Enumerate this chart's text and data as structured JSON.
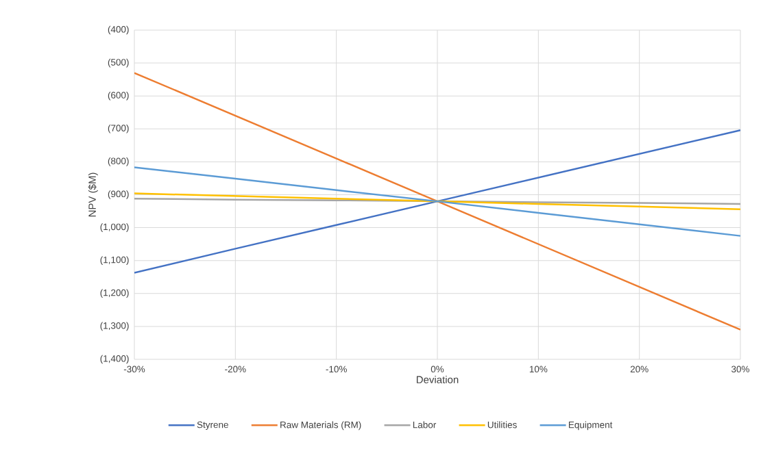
{
  "chart_data": {
    "type": "line",
    "xlabel": "Deviation",
    "ylabel": "NPV ($M)",
    "x": [
      -30,
      -20,
      -10,
      0,
      10,
      20,
      30
    ],
    "series": [
      {
        "name": "Styrene",
        "color": "#4472c4",
        "values": [
          -1137,
          -1064,
          -992,
          -920,
          -848,
          -776,
          -704
        ]
      },
      {
        "name": "Raw Materials (RM)",
        "color": "#ed7d31",
        "values": [
          -530,
          -660,
          -790,
          -920,
          -1050,
          -1180,
          -1310
        ]
      },
      {
        "name": "Labor",
        "color": "#a5a5a5",
        "values": [
          -912,
          -915,
          -917,
          -920,
          -923,
          -925,
          -928
        ]
      },
      {
        "name": "Utilities",
        "color": "#ffc000",
        "values": [
          -896,
          -904,
          -912,
          -920,
          -928,
          -936,
          -944
        ]
      },
      {
        "name": "Equipment",
        "color": "#5b9bd5",
        "values": [
          -817,
          -851,
          -886,
          -920,
          -955,
          -990,
          -1025
        ]
      }
    ],
    "xlim": [
      -30,
      30
    ],
    "xticks": [
      {
        "value": -30,
        "label": "-30%"
      },
      {
        "value": -20,
        "label": "-20%"
      },
      {
        "value": -10,
        "label": "-10%"
      },
      {
        "value": 0,
        "label": "0%"
      },
      {
        "value": 10,
        "label": "10%"
      },
      {
        "value": 20,
        "label": "20%"
      },
      {
        "value": 30,
        "label": "30%"
      }
    ],
    "ylim": [
      -1400,
      -400
    ],
    "yticks": [
      {
        "value": -1400,
        "label": "(1,400)"
      },
      {
        "value": -1300,
        "label": "(1,300)"
      },
      {
        "value": -1200,
        "label": "(1,200)"
      },
      {
        "value": -1100,
        "label": "(1,100)"
      },
      {
        "value": -1000,
        "label": "(1,000)"
      },
      {
        "value": -900,
        "label": "(900)"
      },
      {
        "value": -800,
        "label": "(800)"
      },
      {
        "value": -700,
        "label": "(700)"
      },
      {
        "value": -600,
        "label": "(600)"
      },
      {
        "value": -500,
        "label": "(500)"
      },
      {
        "value": -400,
        "label": "(400)"
      }
    ],
    "grid": true,
    "legend": "bottom",
    "marker": "none",
    "line_style": "solid"
  }
}
